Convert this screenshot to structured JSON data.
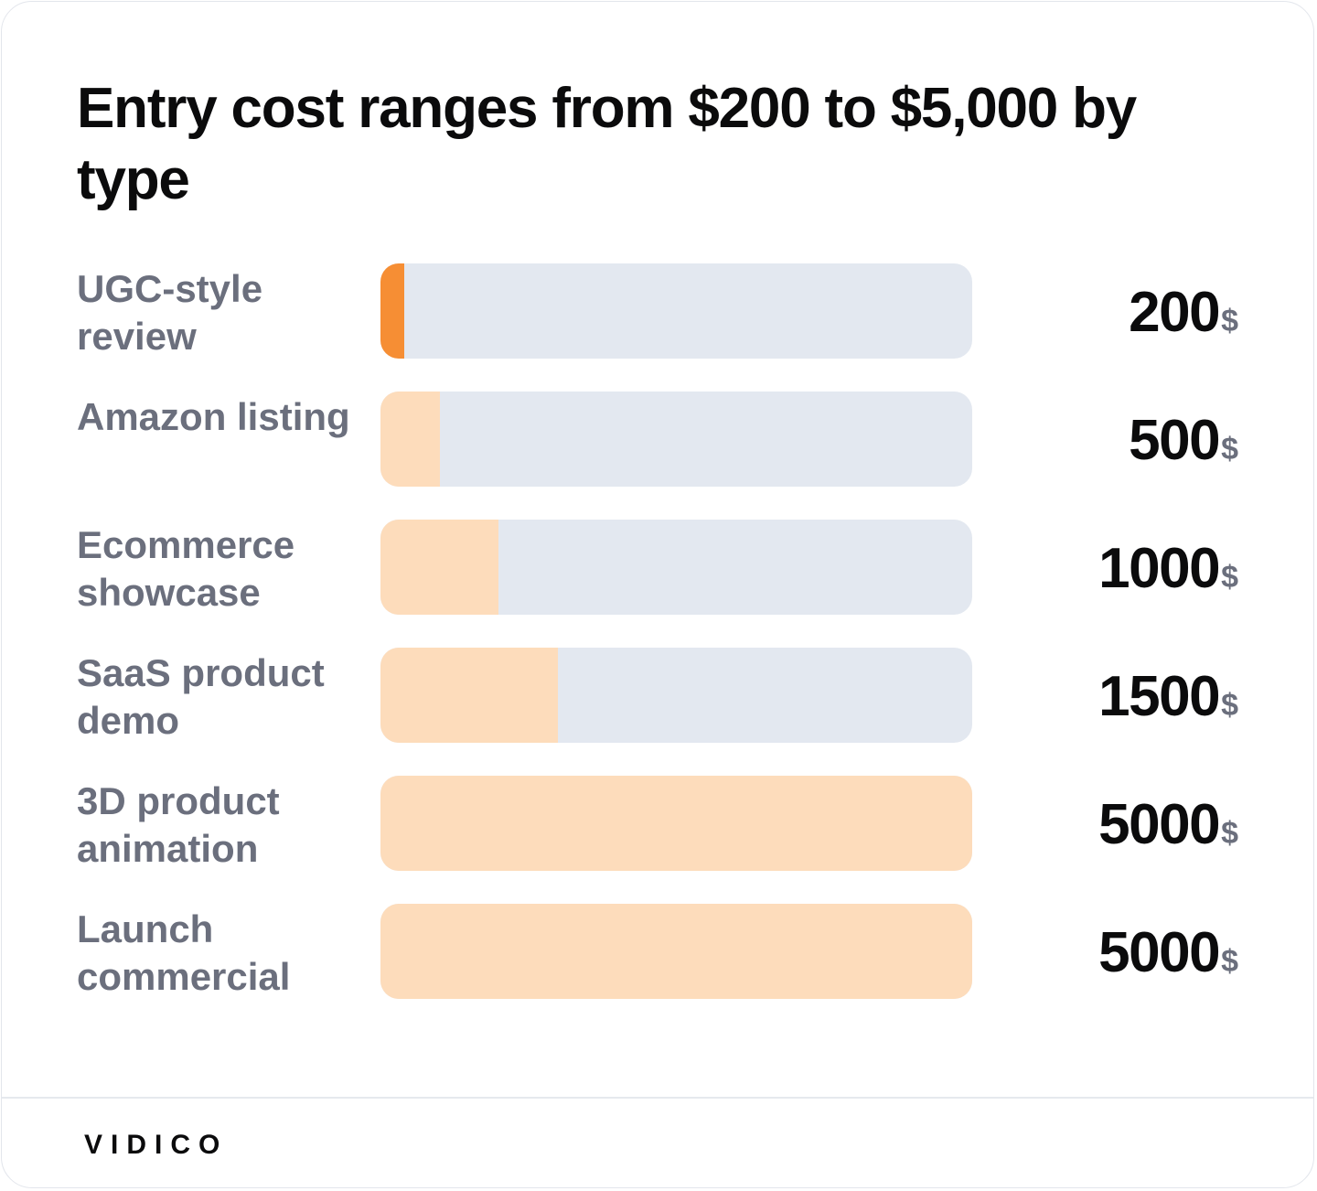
{
  "chart_data": {
    "type": "bar",
    "orientation": "horizontal",
    "title": "Entry cost ranges from $200 to $5,000 by type",
    "categories": [
      "UGC-style review",
      "Amazon listing",
      "Ecommerce showcase",
      "SaaS product demo",
      "3D product animation",
      "Launch commercial"
    ],
    "values": [
      200,
      500,
      1000,
      1500,
      5000,
      5000
    ],
    "value_labels": [
      "200",
      "500",
      "1000",
      "1500",
      "5000",
      "5000"
    ],
    "unit": "$",
    "xlim": [
      0,
      5000
    ],
    "grid": false,
    "legend": "none",
    "highlight_index": 0
  },
  "colors": {
    "highlight": "#f68e34",
    "bar": "#fddcbb",
    "track": "#e3e8f0",
    "label": "#6b6f7d",
    "value": "#0b0b0c"
  },
  "brand": "VIDICO"
}
